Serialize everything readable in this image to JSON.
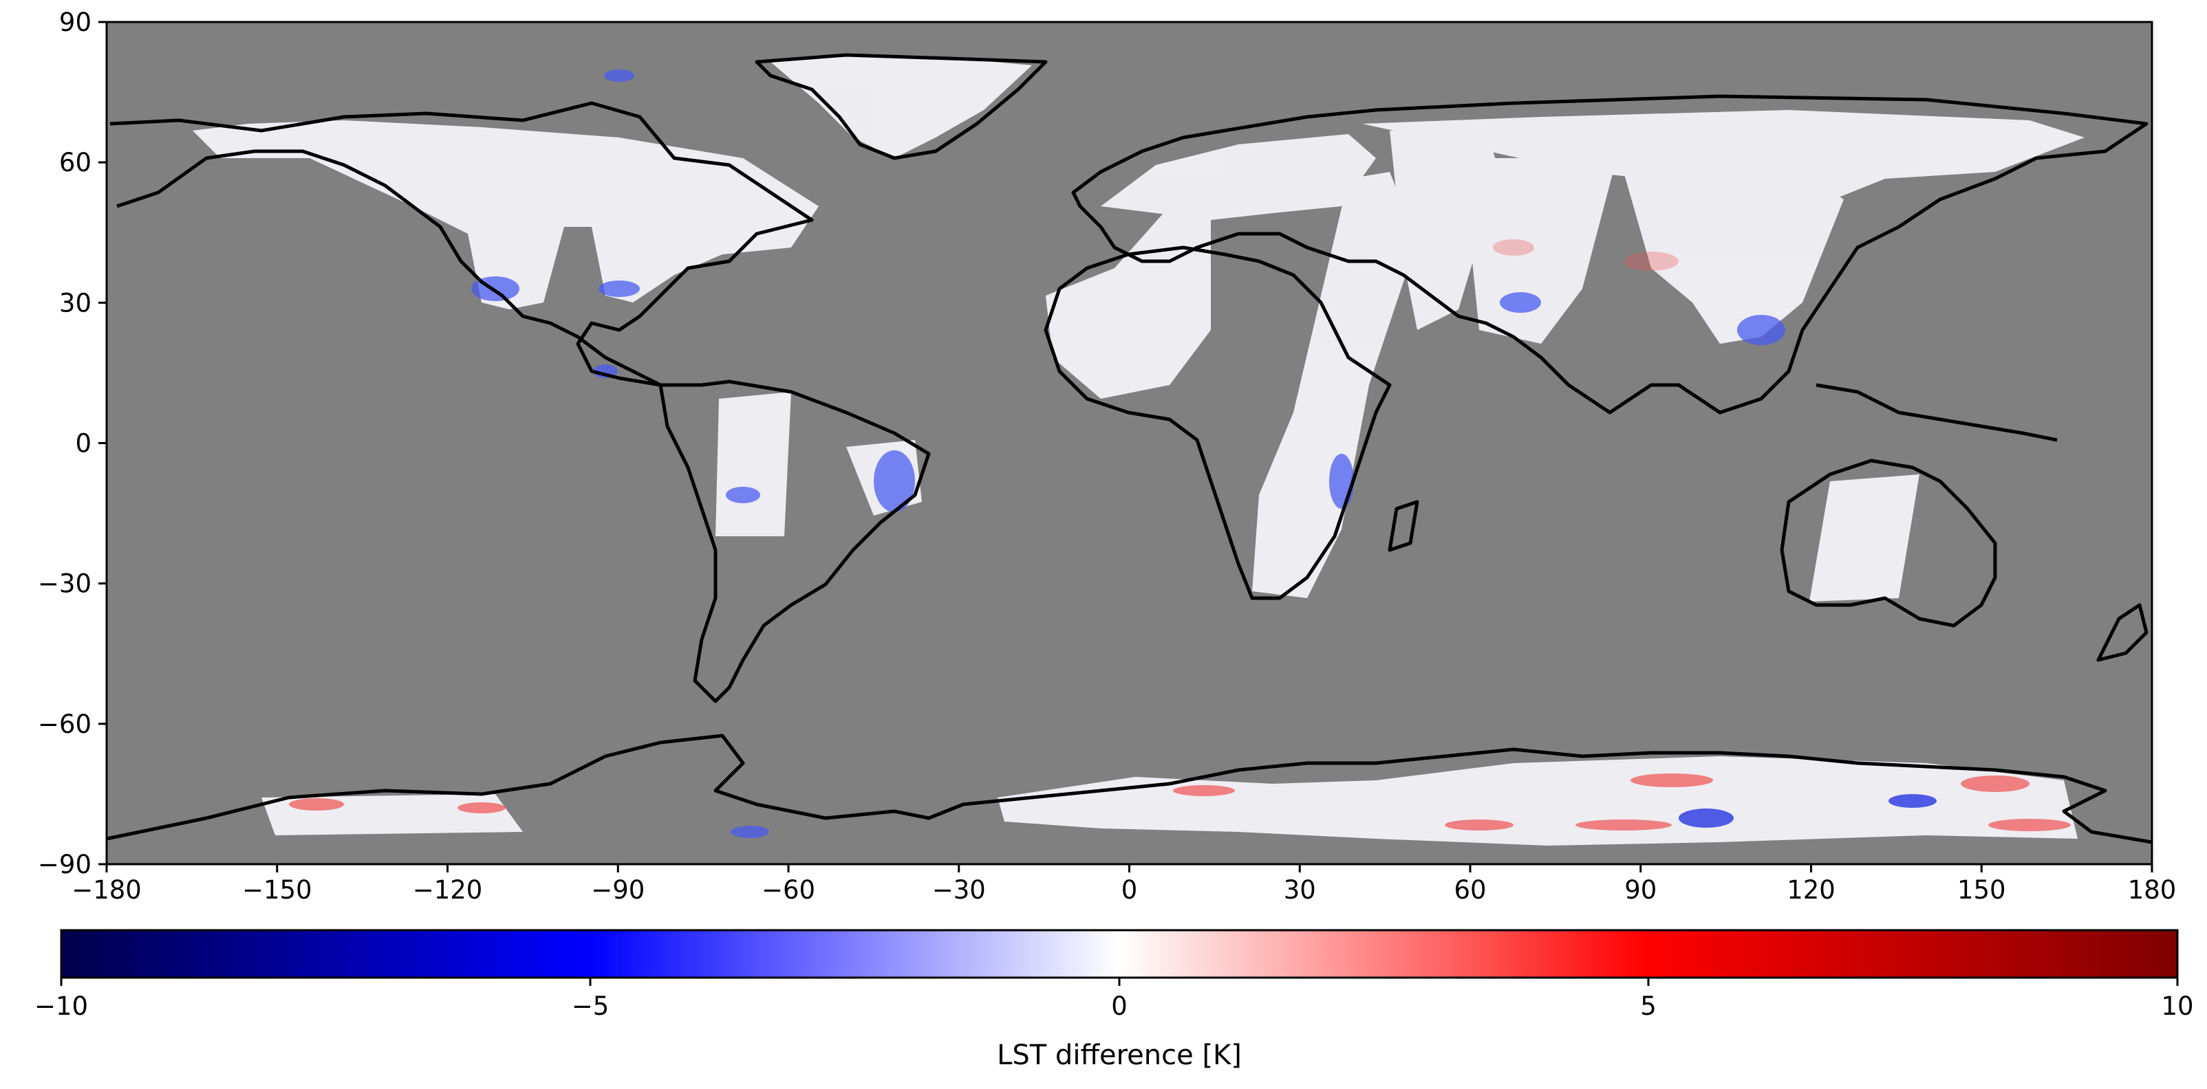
{
  "map": {
    "projection": "plate carree",
    "lon_range": [
      -180,
      180
    ],
    "lat_range": [
      -90,
      90
    ],
    "background_color": "#808080",
    "coastline_color": "#000000",
    "lon_ticks": [
      "−180",
      "−150",
      "−120",
      "−90",
      "−60",
      "−30",
      "0",
      "30",
      "60",
      "90",
      "120",
      "150",
      "180"
    ],
    "lat_ticks": [
      "90",
      "60",
      "30",
      "0",
      "−30",
      "−60",
      "−90"
    ]
  },
  "colorbar": {
    "label": "LST difference [K]",
    "range": [
      -10,
      10
    ],
    "colormap": "seismic",
    "colors": [
      "#00004c",
      "#0000ff",
      "#ffffff",
      "#ff0000",
      "#7f0000"
    ],
    "ticks": [
      "−10",
      "−5",
      "0",
      "5",
      "10"
    ]
  }
}
